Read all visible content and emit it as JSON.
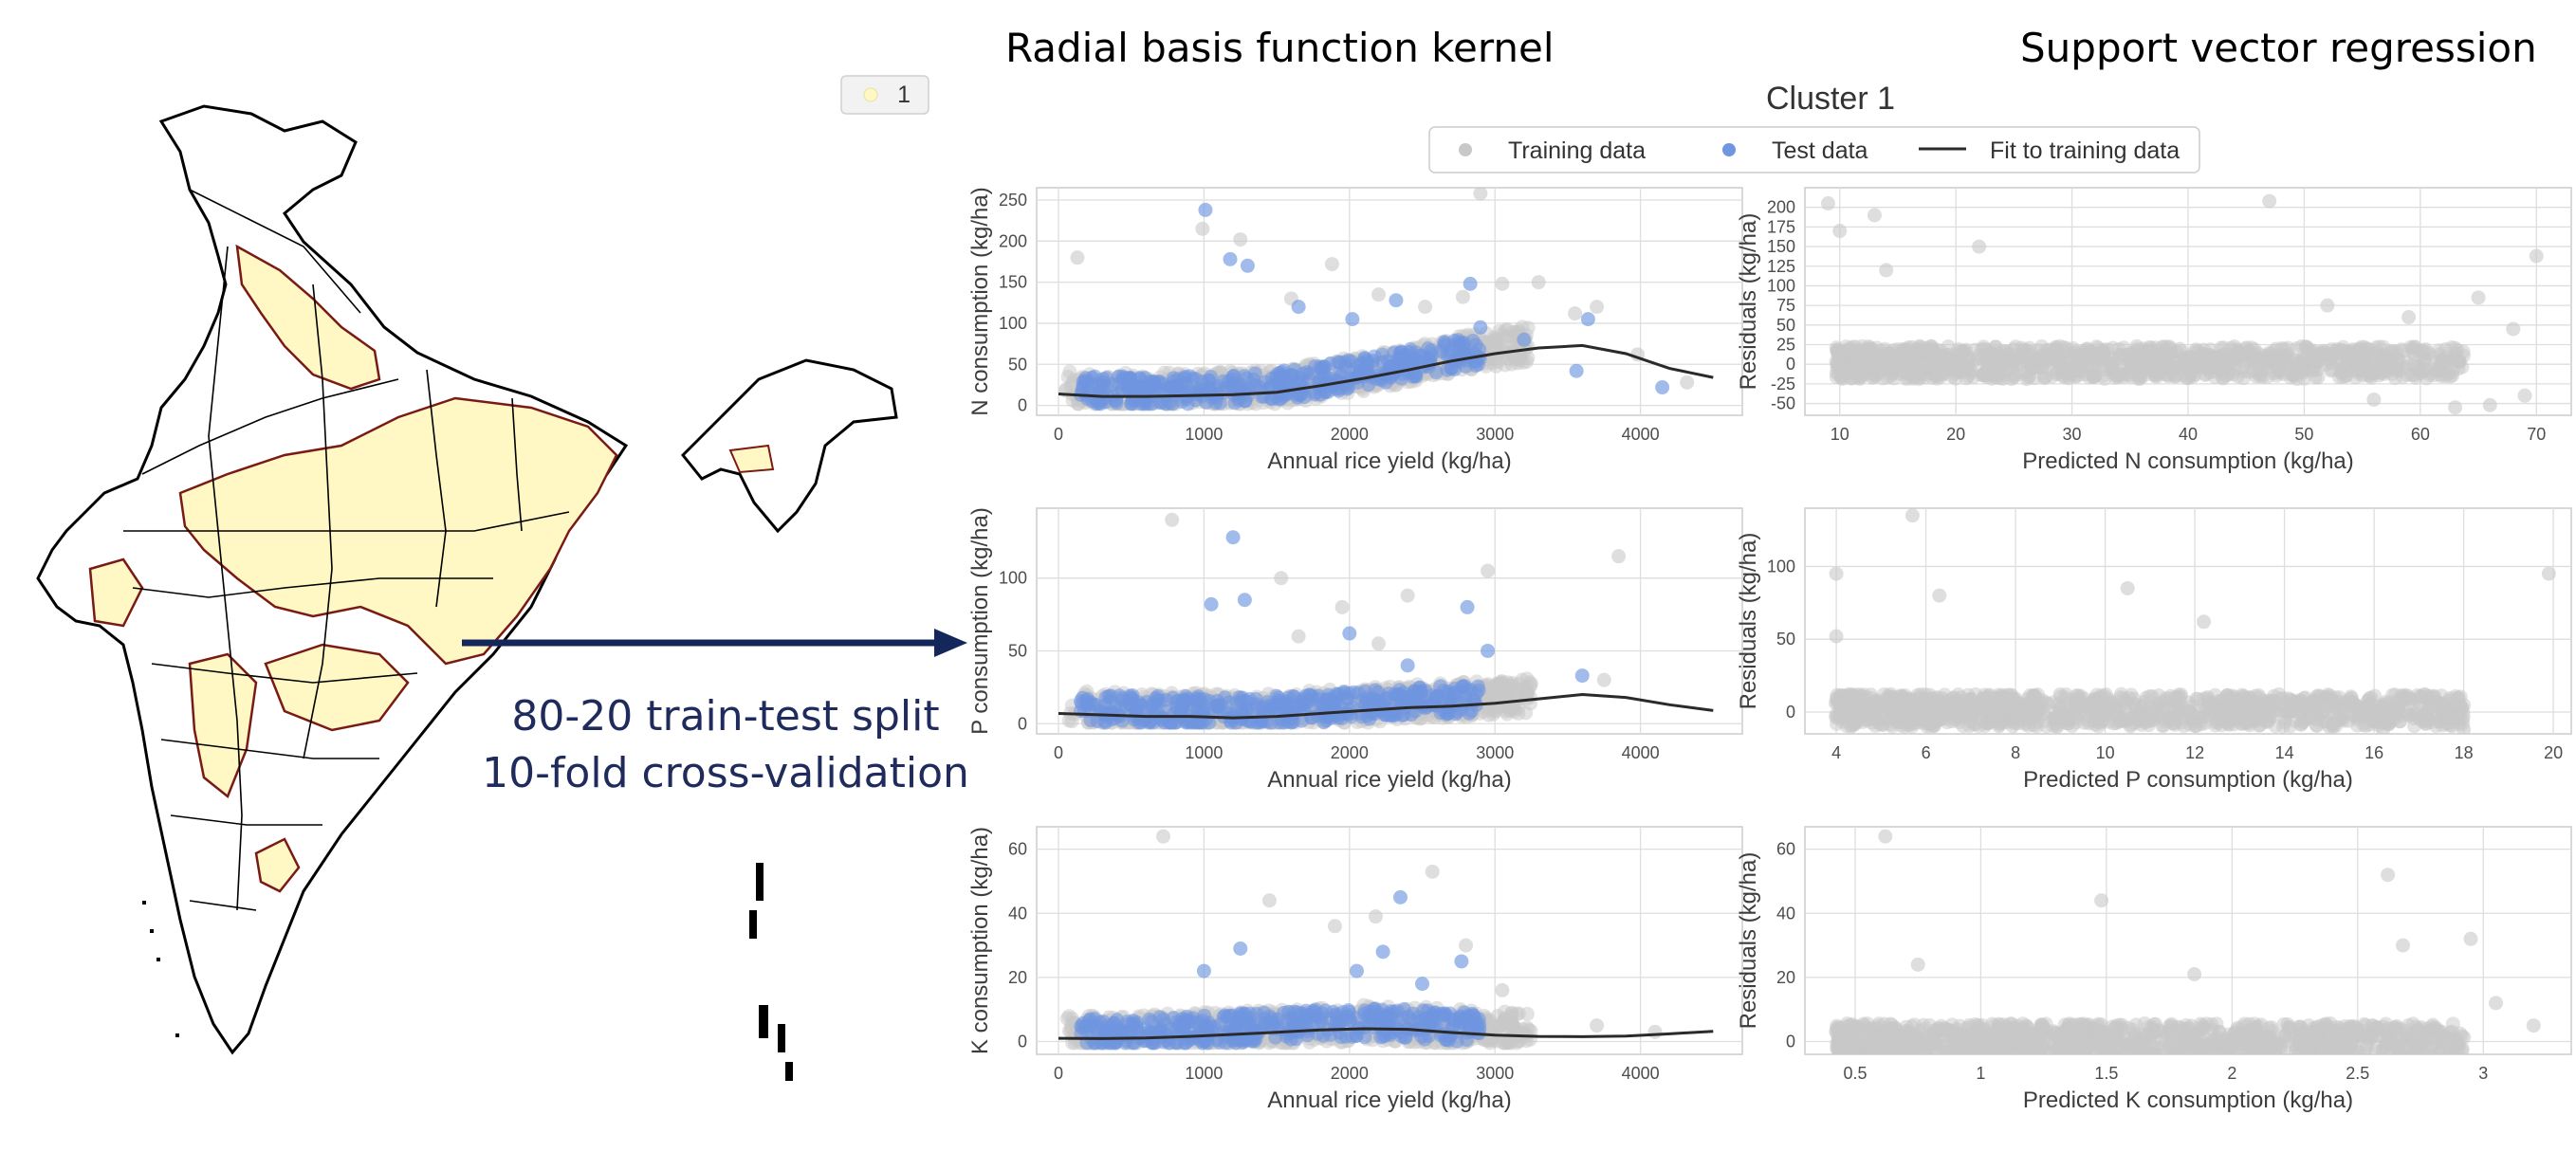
{
  "headings": {
    "left": "Radial basis function kernel",
    "right": "Support vector regression",
    "cluster": "Cluster 1"
  },
  "annotation": {
    "line1": "80-20 train-test split",
    "line2": "10-fold cross-validation"
  },
  "map": {
    "legend_label": "1",
    "highlight_fill": "#fff7c4",
    "highlight_border": "#7a1a14"
  },
  "legend": {
    "training": "Training data",
    "test": "Test data",
    "fit": "Fit to training data"
  },
  "colors": {
    "training": "#c8c8c8",
    "test": "#6f96e0",
    "fit": "#2a2a2a",
    "arrow": "#14275a"
  },
  "chart_data": [
    {
      "id": "n_fit",
      "type": "scatter",
      "xlabel": "Annual rice yield (kg/ha)",
      "ylabel": "N consumption (kg/ha)",
      "xlim": [
        -150,
        4700
      ],
      "ylim": [
        -12,
        265
      ],
      "xticks": [
        0,
        1000,
        2000,
        3000,
        4000
      ],
      "yticks": [
        0,
        50,
        100,
        150,
        200,
        250
      ],
      "grid": true,
      "series": [
        {
          "name": "Training data",
          "points": [
            [
              130,
              180
            ],
            [
              990,
              215
            ],
            [
              1250,
              202
            ],
            [
              2900,
              258
            ],
            [
              3300,
              150
            ],
            [
              2780,
              132
            ],
            [
              2520,
              120
            ],
            [
              1880,
              172
            ],
            [
              3700,
              120
            ],
            [
              3550,
              112
            ],
            [
              4320,
              28
            ],
            [
              3980,
              62
            ],
            [
              1600,
              130
            ],
            [
              2200,
              135
            ],
            [
              3050,
              148
            ]
          ]
        },
        {
          "name": "Test data",
          "points": [
            [
              1010,
              238
            ],
            [
              1180,
              178
            ],
            [
              1300,
              170
            ],
            [
              2830,
              148
            ],
            [
              2320,
              128
            ],
            [
              1650,
              120
            ],
            [
              3640,
              105
            ],
            [
              2900,
              95
            ],
            [
              4150,
              22
            ],
            [
              3200,
              80
            ],
            [
              2020,
              105
            ],
            [
              3560,
              42
            ]
          ]
        },
        {
          "name": "Fit to training data",
          "points": [
            [
              0,
              14
            ],
            [
              300,
              11
            ],
            [
              600,
              11
            ],
            [
              900,
              12
            ],
            [
              1200,
              13
            ],
            [
              1500,
              16
            ],
            [
              1800,
              24
            ],
            [
              2100,
              33
            ],
            [
              2400,
              43
            ],
            [
              2700,
              54
            ],
            [
              3000,
              63
            ],
            [
              3300,
              70
            ],
            [
              3600,
              73
            ],
            [
              3900,
              63
            ],
            [
              4200,
              45
            ],
            [
              4500,
              34
            ]
          ]
        }
      ]
    },
    {
      "id": "n_res",
      "type": "scatter",
      "xlabel": "Predicted N consumption (kg/ha)",
      "ylabel": "Residuals (kg/ha)",
      "xlim": [
        7,
        73
      ],
      "ylim": [
        -65,
        225
      ],
      "xticks": [
        10,
        20,
        30,
        40,
        50,
        60,
        70
      ],
      "yticks": [
        -50,
        -25,
        0,
        25,
        50,
        75,
        100,
        125,
        150,
        175,
        200
      ],
      "grid": true,
      "series": [
        {
          "name": "Training data",
          "points": [
            [
              9,
              205
            ],
            [
              13,
              190
            ],
            [
              10,
              170
            ],
            [
              47,
              208
            ],
            [
              22,
              150
            ],
            [
              70,
              138
            ],
            [
              52,
              75
            ],
            [
              65,
              85
            ],
            [
              59,
              60
            ],
            [
              68,
              45
            ],
            [
              69,
              -40
            ],
            [
              66,
              -52
            ],
            [
              63,
              -55
            ],
            [
              56,
              -45
            ],
            [
              14,
              120
            ]
          ]
        }
      ]
    },
    {
      "id": "p_fit",
      "type": "scatter",
      "xlabel": "Annual rice yield (kg/ha)",
      "ylabel": "P consumption (kg/ha)",
      "xlim": [
        -150,
        4700
      ],
      "ylim": [
        -7,
        148
      ],
      "xticks": [
        0,
        1000,
        2000,
        3000,
        4000
      ],
      "yticks": [
        0,
        50,
        100
      ],
      "grid": true,
      "series": [
        {
          "name": "Training data",
          "points": [
            [
              780,
              140
            ],
            [
              2950,
              105
            ],
            [
              3850,
              115
            ],
            [
              1530,
              100
            ],
            [
              2400,
              88
            ],
            [
              1950,
              80
            ],
            [
              1650,
              60
            ],
            [
              3750,
              30
            ],
            [
              2200,
              55
            ]
          ]
        },
        {
          "name": "Test data",
          "points": [
            [
              1200,
              128
            ],
            [
              1050,
              82
            ],
            [
              1280,
              85
            ],
            [
              2000,
              62
            ],
            [
              2810,
              80
            ],
            [
              2950,
              50
            ],
            [
              2400,
              40
            ],
            [
              3600,
              33
            ]
          ]
        },
        {
          "name": "Fit to training data",
          "points": [
            [
              0,
              7
            ],
            [
              300,
              6
            ],
            [
              600,
              5
            ],
            [
              900,
              5
            ],
            [
              1200,
              4
            ],
            [
              1500,
              5
            ],
            [
              1800,
              7
            ],
            [
              2100,
              9
            ],
            [
              2400,
              11
            ],
            [
              2700,
              12
            ],
            [
              3000,
              14
            ],
            [
              3300,
              17
            ],
            [
              3600,
              20
            ],
            [
              3900,
              18
            ],
            [
              4200,
              13
            ],
            [
              4500,
              9
            ]
          ]
        }
      ]
    },
    {
      "id": "p_res",
      "type": "scatter",
      "xlabel": "Predicted P consumption (kg/ha)",
      "ylabel": "Residuals (kg/ha)",
      "xlim": [
        3.3,
        20.4
      ],
      "ylim": [
        -15,
        140
      ],
      "xticks": [
        4,
        6,
        8,
        10,
        12,
        14,
        16,
        18,
        20
      ],
      "yticks": [
        0,
        50,
        100
      ],
      "grid": true,
      "series": [
        {
          "name": "Training data",
          "points": [
            [
              4,
              95
            ],
            [
              5.7,
              135
            ],
            [
              6.3,
              80
            ],
            [
              10.5,
              85
            ],
            [
              12.2,
              62
            ],
            [
              4,
              52
            ],
            [
              19.9,
              95
            ],
            [
              18,
              -12
            ],
            [
              16.2,
              -12
            ],
            [
              15,
              -10
            ],
            [
              17.5,
              5
            ]
          ]
        }
      ]
    },
    {
      "id": "k_fit",
      "type": "scatter",
      "xlabel": "Annual rice yield (kg/ha)",
      "ylabel": "K consumption (kg/ha)",
      "xlim": [
        -150,
        4700
      ],
      "ylim": [
        -4,
        67
      ],
      "xticks": [
        0,
        1000,
        2000,
        3000,
        4000
      ],
      "yticks": [
        0,
        20,
        40,
        60
      ],
      "grid": true,
      "series": [
        {
          "name": "Training data",
          "points": [
            [
              720,
              64
            ],
            [
              2570,
              53
            ],
            [
              1450,
              44
            ],
            [
              2180,
              39
            ],
            [
              2800,
              30
            ],
            [
              3050,
              16
            ],
            [
              1900,
              36
            ],
            [
              3700,
              5
            ],
            [
              4100,
              3
            ]
          ]
        },
        {
          "name": "Test data",
          "points": [
            [
              2350,
              45
            ],
            [
              1250,
              29
            ],
            [
              2230,
              28
            ],
            [
              2770,
              25
            ],
            [
              2050,
              22
            ],
            [
              2500,
              18
            ],
            [
              1000,
              22
            ]
          ]
        },
        {
          "name": "Fit to training data",
          "points": [
            [
              0,
              1
            ],
            [
              300,
              0.9
            ],
            [
              600,
              1.1
            ],
            [
              900,
              1.6
            ],
            [
              1200,
              2.2
            ],
            [
              1500,
              2.9
            ],
            [
              1800,
              3.6
            ],
            [
              2100,
              4
            ],
            [
              2400,
              3.8
            ],
            [
              2700,
              2.8
            ],
            [
              3000,
              2
            ],
            [
              3300,
              1.6
            ],
            [
              3600,
              1.5
            ],
            [
              3900,
              1.7
            ],
            [
              4200,
              2.4
            ],
            [
              4500,
              3.2
            ]
          ]
        }
      ]
    },
    {
      "id": "k_res",
      "type": "scatter",
      "xlabel": "Predicted K consumption (kg/ha)",
      "ylabel": "Residuals (kg/ha)",
      "xlim": [
        0.3,
        3.35
      ],
      "ylim": [
        -4,
        67
      ],
      "xticks": [
        0.5,
        1.0,
        1.5,
        2.0,
        2.5,
        3.0
      ],
      "yticks": [
        0,
        20,
        40,
        60
      ],
      "grid": true,
      "series": [
        {
          "name": "Training data",
          "points": [
            [
              0.62,
              64
            ],
            [
              1.48,
              44
            ],
            [
              2.62,
              52
            ],
            [
              2.95,
              32
            ],
            [
              2.68,
              30
            ],
            [
              1.85,
              21
            ],
            [
              0.75,
              24
            ],
            [
              3.2,
              5
            ],
            [
              3.05,
              12
            ]
          ]
        }
      ]
    }
  ]
}
